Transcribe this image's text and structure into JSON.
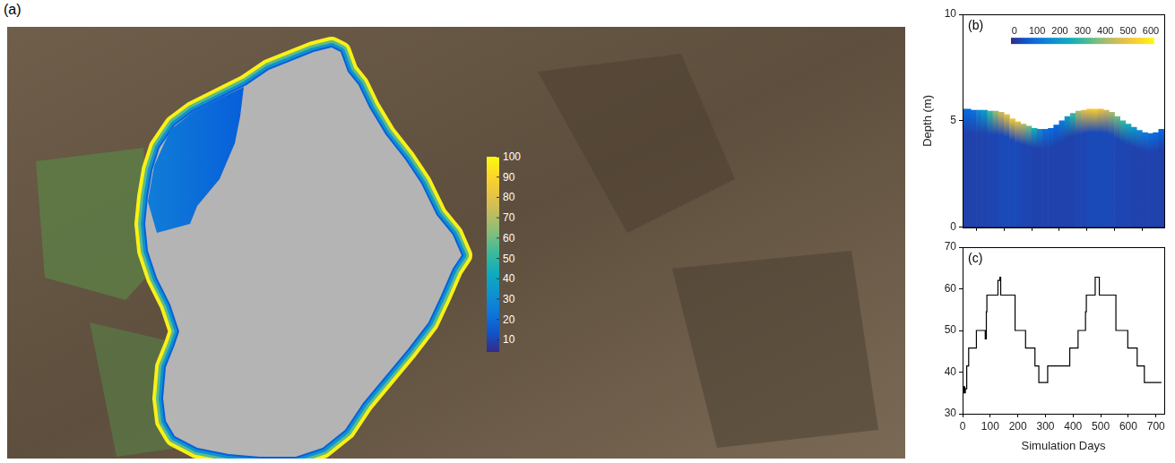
{
  "chart_data": [
    {
      "panel": "(a)",
      "type": "map",
      "colorbar": {
        "range": [
          4,
          100
        ],
        "ticks": [
          10,
          20,
          30,
          40,
          50,
          60,
          70,
          80,
          90,
          100
        ]
      }
    },
    {
      "panel": "(b)",
      "type": "heatmap",
      "x": [
        0,
        20,
        40,
        60,
        80,
        100,
        120,
        140,
        160,
        180,
        200,
        220,
        240,
        260,
        280,
        300,
        320,
        340,
        360,
        380,
        400,
        420,
        440,
        460,
        480,
        500,
        520,
        540,
        560,
        580,
        600,
        620,
        640,
        660,
        680,
        700,
        720
      ],
      "depth": [
        5.55,
        5.55,
        5.5,
        5.5,
        5.5,
        5.45,
        5.45,
        5.4,
        5.3,
        5.1,
        4.95,
        4.85,
        4.75,
        4.65,
        4.6,
        4.6,
        4.65,
        4.8,
        5.0,
        5.2,
        5.35,
        5.45,
        5.5,
        5.55,
        5.55,
        5.55,
        5.5,
        5.4,
        5.2,
        5.0,
        4.85,
        4.7,
        4.55,
        4.45,
        4.4,
        4.45,
        4.6
      ],
      "bottom_values": [
        20,
        20,
        20,
        20,
        20,
        25,
        25,
        30,
        30,
        30,
        30,
        25,
        25,
        20,
        20,
        20,
        20,
        20,
        20,
        20,
        20,
        25,
        25,
        30,
        30,
        30,
        30,
        30,
        25,
        25,
        25,
        20,
        20,
        20,
        20,
        20,
        20
      ],
      "surface_values": [
        80,
        90,
        100,
        150,
        200,
        300,
        380,
        450,
        500,
        520,
        480,
        420,
        350,
        250,
        150,
        100,
        90,
        80,
        120,
        200,
        300,
        400,
        480,
        520,
        540,
        500,
        450,
        400,
        350,
        300,
        250,
        200,
        150,
        120,
        100,
        90,
        80
      ],
      "xlim": [
        0,
        730
      ],
      "xticks": [
        0,
        100,
        200,
        300,
        400,
        500,
        600,
        700
      ],
      "ylim": [
        0,
        10
      ],
      "yticks": [
        0,
        5,
        10
      ],
      "y_label": "Depth (m)",
      "tick_labels": "y",
      "grid": false,
      "colorbar": {
        "range": [
          -15,
          615
        ],
        "ticks": [
          0,
          100,
          200,
          300,
          400,
          500,
          600
        ]
      }
    },
    {
      "panel": "(c)",
      "type": "line",
      "x": [
        0,
        5,
        8,
        10,
        15,
        22,
        50,
        82,
        86,
        88,
        128,
        135,
        138,
        190,
        228,
        262,
        276,
        308,
        388,
        418,
        445,
        448,
        480,
        495,
        555,
        598,
        632,
        658,
        685,
        720
      ],
      "values": [
        36,
        35,
        36.5,
        35,
        36,
        41.5,
        45.8,
        50,
        48,
        54.5,
        58.5,
        62,
        62.8,
        58.5,
        50,
        45.8,
        41.5,
        37.5,
        41.5,
        45.8,
        50,
        54.5,
        58.5,
        62.8,
        58.5,
        50,
        45.8,
        41.5,
        37.5,
        37.5
      ],
      "color": "#000000",
      "line_style": "steps",
      "marker": "none",
      "xlim": [
        0,
        730
      ],
      "xticks": [
        0,
        100,
        200,
        300,
        400,
        500,
        600,
        700
      ],
      "ylim": [
        30,
        70
      ],
      "yticks": [
        30,
        40,
        50,
        60,
        70
      ],
      "x_label": "Simulation Days",
      "grid": false
    }
  ]
}
